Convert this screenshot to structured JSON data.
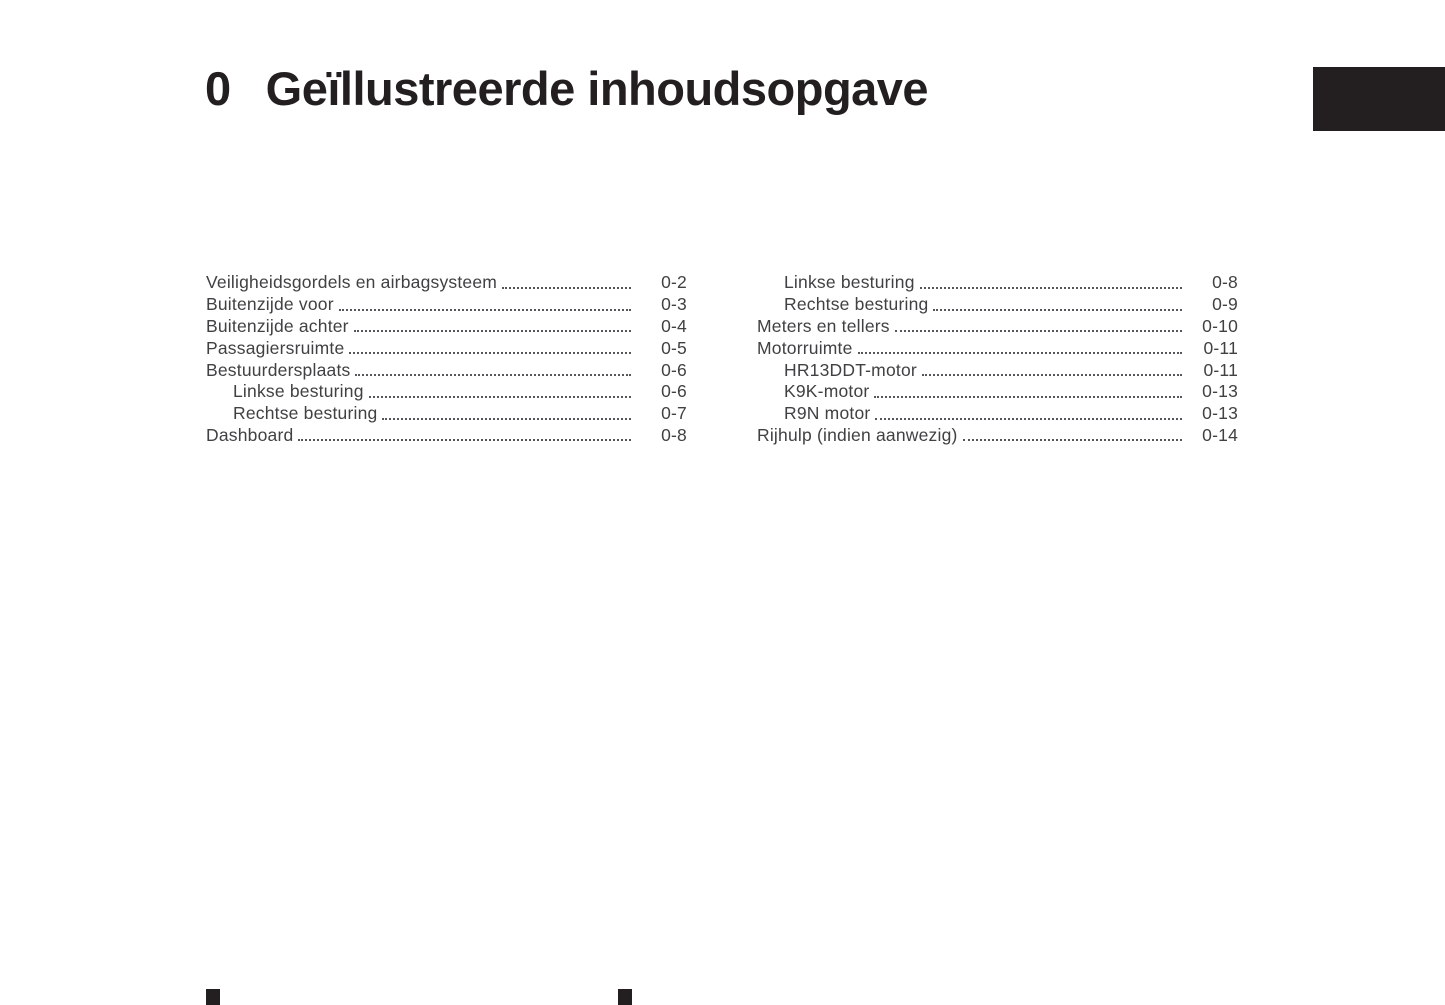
{
  "page": {
    "background_color": "#ffffff",
    "body_text_color": "#414042",
    "accent_black": "#231f20",
    "leader_dot_color": "#55565a"
  },
  "header": {
    "chapter_number": "0",
    "title": "Geïllustreerde inhoudsopgave"
  },
  "toc": {
    "left_column": [
      {
        "label": "Veiligheidsgordels en airbagsysteem",
        "page": "0-2",
        "indent": false
      },
      {
        "label": "Buitenzijde voor",
        "page": "0-3",
        "indent": false
      },
      {
        "label": "Buitenzijde achter",
        "page": "0-4",
        "indent": false
      },
      {
        "label": "Passagiersruimte",
        "page": "0-5",
        "indent": false
      },
      {
        "label": "Bestuurdersplaats",
        "page": "0-6",
        "indent": false
      },
      {
        "label": "Linkse besturing",
        "page": "0-6",
        "indent": true
      },
      {
        "label": "Rechtse besturing",
        "page": "0-7",
        "indent": true
      },
      {
        "label": "Dashboard",
        "page": "0-8",
        "indent": false
      }
    ],
    "right_column": [
      {
        "label": "Linkse besturing",
        "page": "0-8",
        "indent": true
      },
      {
        "label": "Rechtse besturing",
        "page": "0-9",
        "indent": true
      },
      {
        "label": "Meters en tellers",
        "page": "0-10",
        "indent": false
      },
      {
        "label": "Motorruimte",
        "page": "0-11",
        "indent": false
      },
      {
        "label": "HR13DDT-motor",
        "page": "0-11",
        "indent": true
      },
      {
        "label": "K9K-motor",
        "page": "0-13",
        "indent": true
      },
      {
        "label": "R9N motor",
        "page": "0-13",
        "indent": true
      },
      {
        "label": "Rijhulp (indien aanwezig)",
        "page": "0-14",
        "indent": false
      }
    ]
  }
}
